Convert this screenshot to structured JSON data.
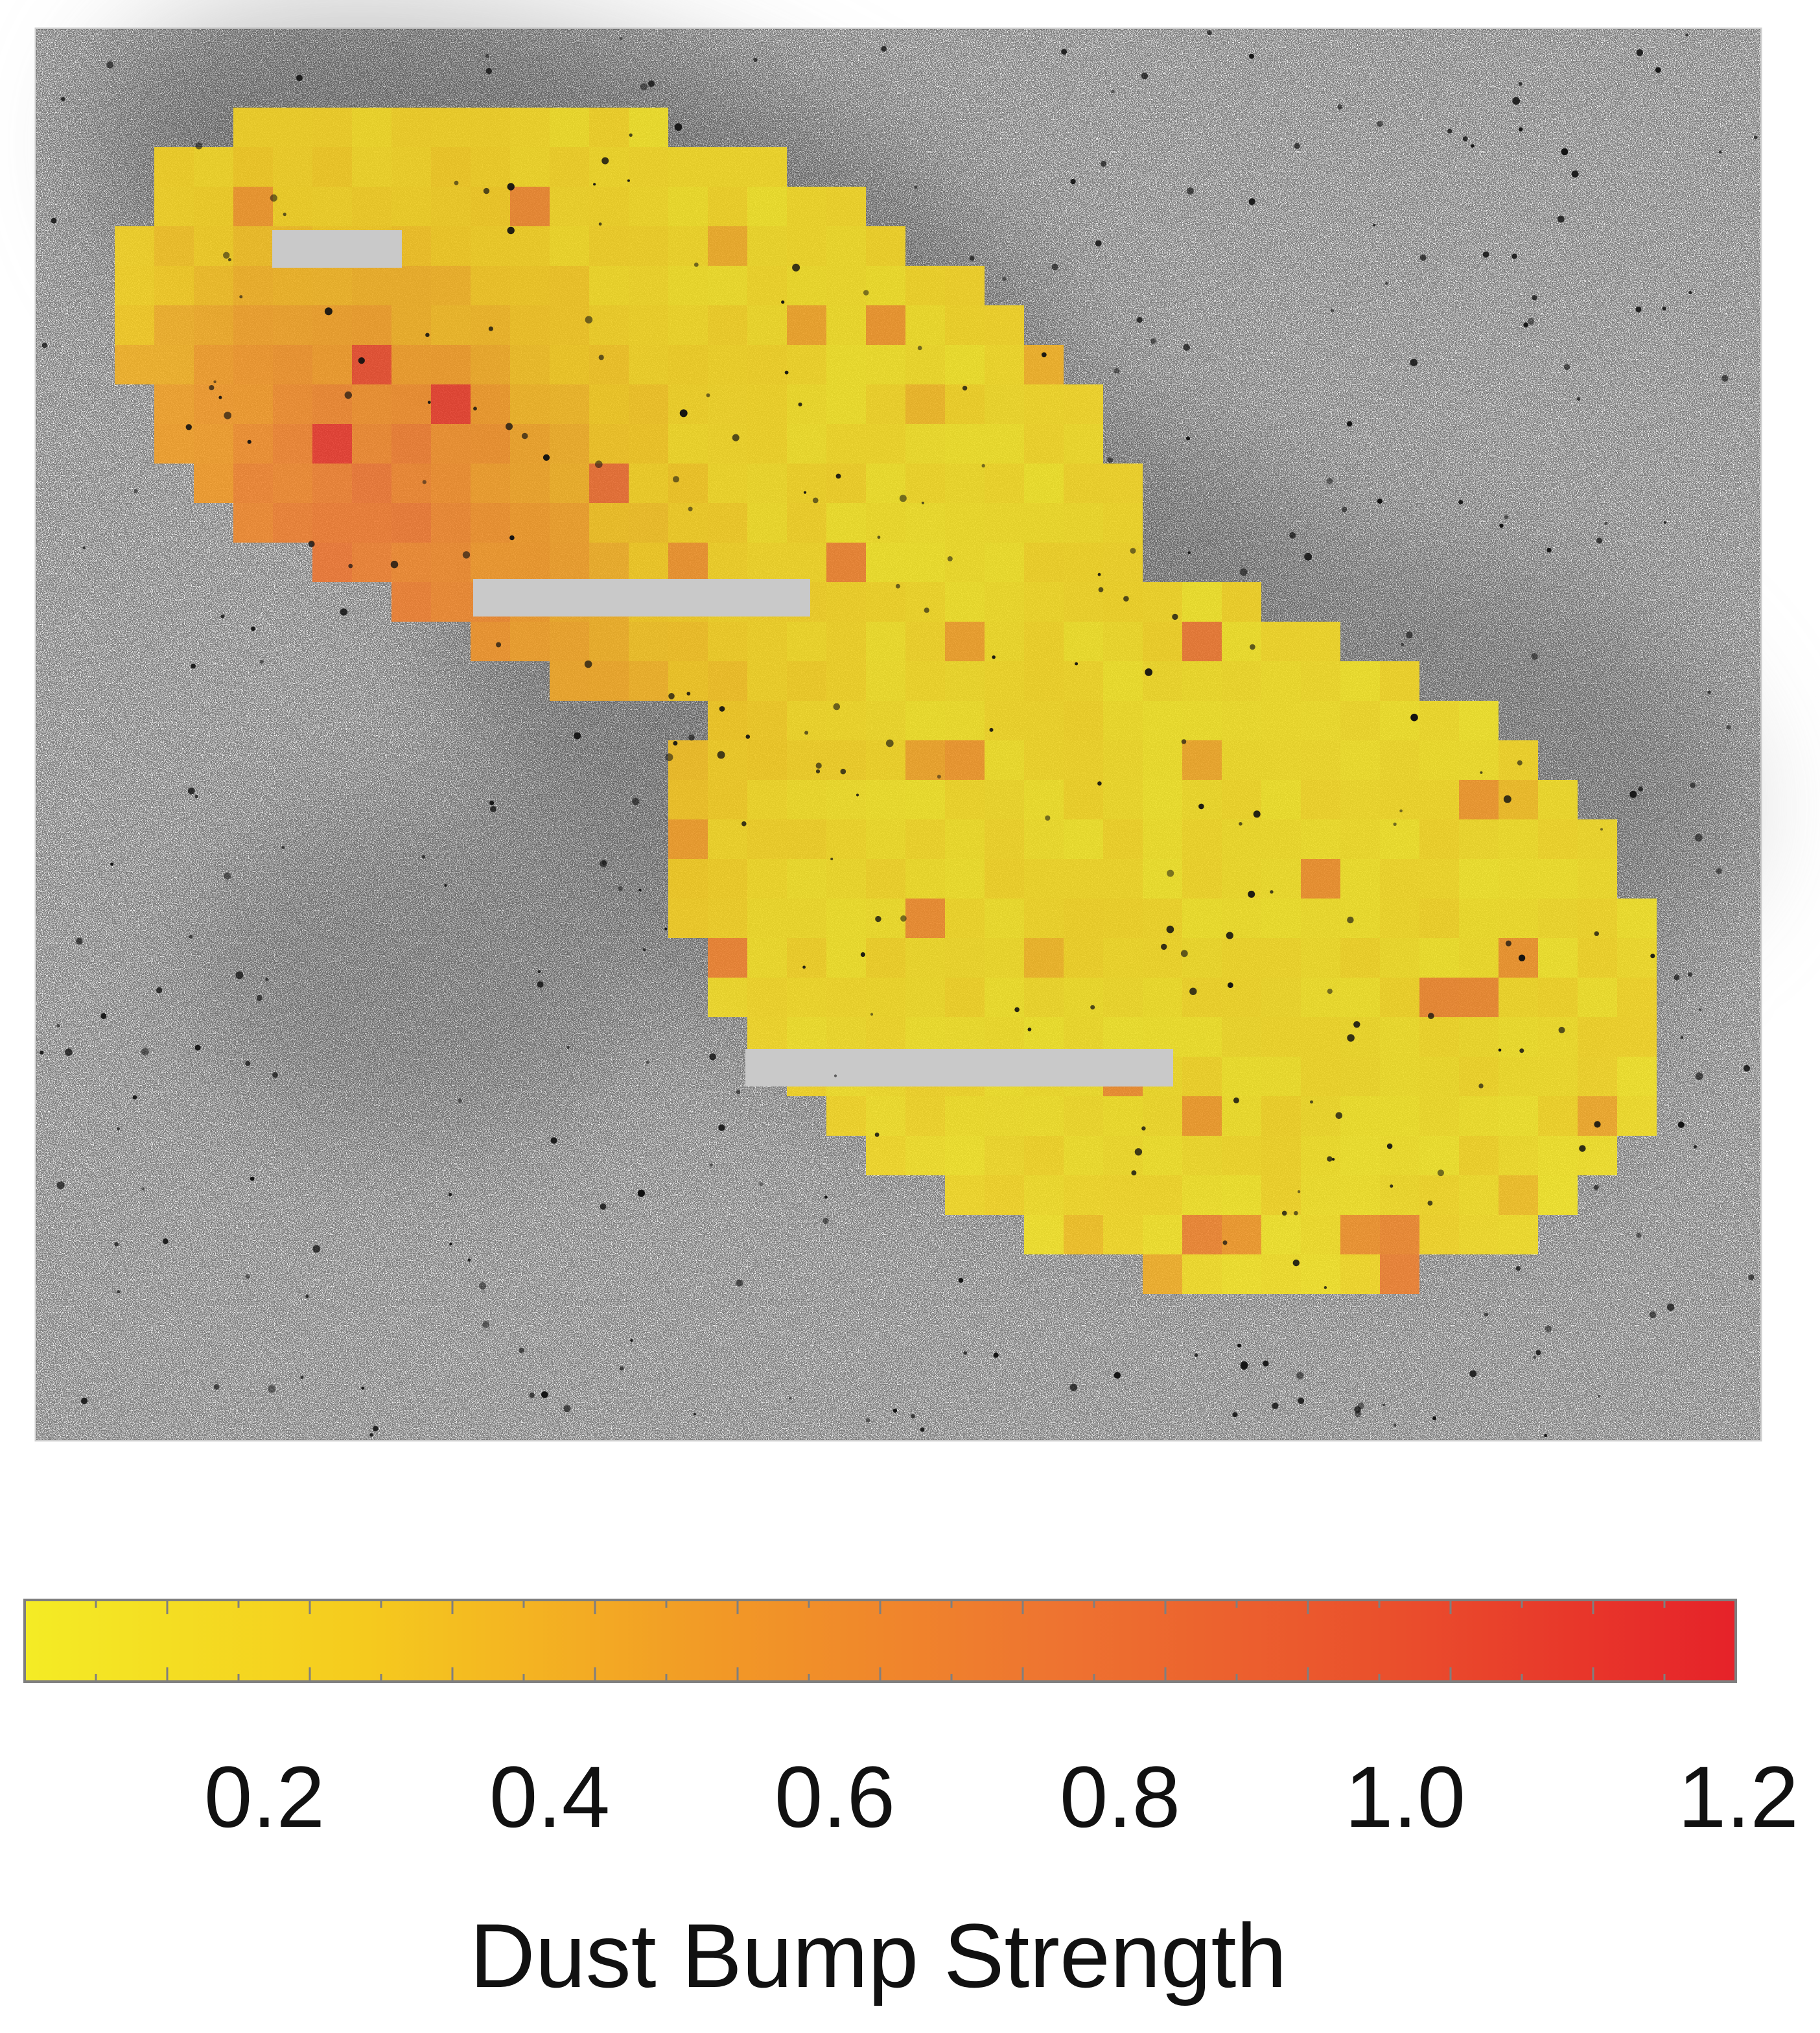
{
  "chart_data": {
    "type": "heatmap",
    "title": "",
    "colorbar": {
      "label": "Dust Bump Strength",
      "range": [
        0.0,
        1.2
      ],
      "ticks": [
        0.2,
        0.4,
        0.6,
        0.8,
        1.0,
        1.2
      ],
      "tick_labels": [
        "0.2",
        "0.4",
        "0.6",
        "0.8",
        "1.0",
        "1.2"
      ],
      "orientation": "horizontal",
      "placement": "bottom",
      "colors": [
        "#f4ec25",
        "#f5ca1e",
        "#f29a26",
        "#ee7430",
        "#ea4f2c",
        "#e62229"
      ]
    },
    "background": "grayscale galaxy image",
    "grid": false
  }
}
